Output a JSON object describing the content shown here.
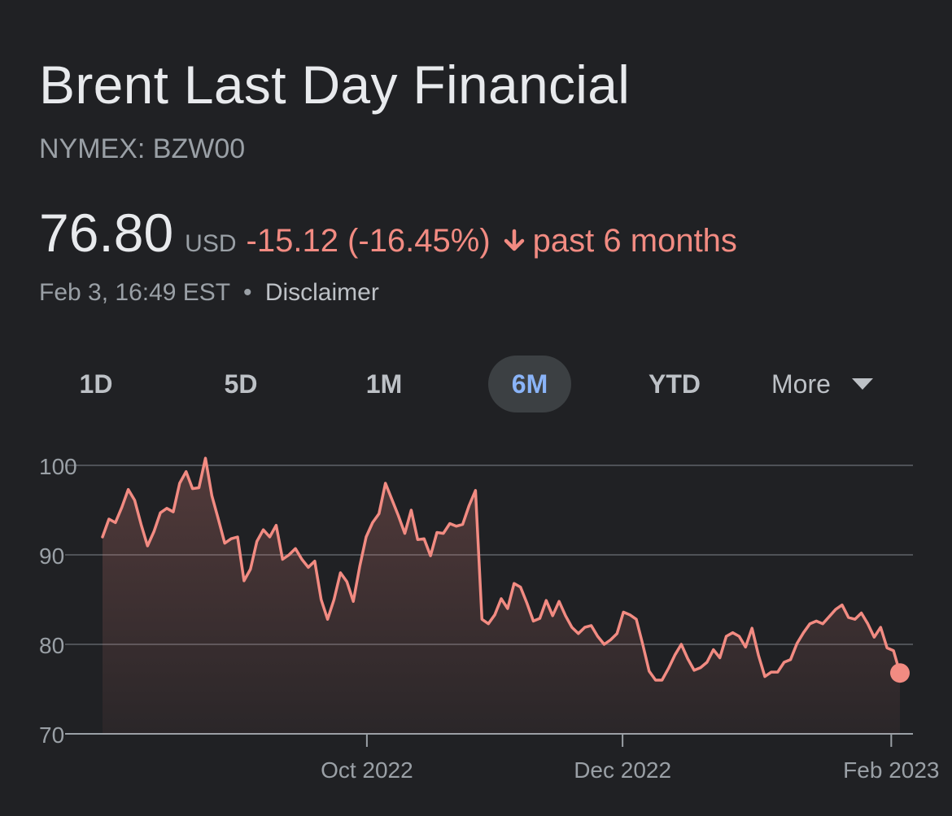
{
  "header": {
    "title": "Brent Last Day Financial",
    "ticker": "NYMEX: BZW00"
  },
  "quote": {
    "price": "76.80",
    "currency": "USD",
    "change": "-15.12 (-16.45%)",
    "direction": "down",
    "period": "past 6 months",
    "timestamp": "Feb 3, 16:49 EST",
    "separator": "•",
    "disclaimer": "Disclaimer"
  },
  "tabs": [
    {
      "label": "1D",
      "active": false
    },
    {
      "label": "5D",
      "active": false
    },
    {
      "label": "1M",
      "active": false
    },
    {
      "label": "6M",
      "active": true
    },
    {
      "label": "YTD",
      "active": false
    },
    {
      "label": "More",
      "active": false
    }
  ],
  "colors": {
    "background": "#202124",
    "line": "#f28b82",
    "negative": "#f28b82",
    "active_tab_text": "#8ab4f8",
    "gridline": "#5f6368",
    "axis_text": "#9aa0a6"
  },
  "icons": {
    "down_arrow": "arrow-down-icon",
    "more_caret": "caret-down-icon"
  },
  "chart_data": {
    "type": "area",
    "ylim": [
      70,
      100
    ],
    "yticks": [
      100,
      90,
      80,
      70
    ],
    "xlim": [
      "2022-08-03",
      "2023-02-03"
    ],
    "xticks": [
      {
        "label": "Oct 2022",
        "date": "2022-10-03"
      },
      {
        "label": "Dec 2022",
        "date": "2022-12-01"
      },
      {
        "label": "Feb 2023",
        "date": "2023-02-01"
      }
    ],
    "grid": true,
    "series": [
      {
        "values": [
          92.0,
          94.0,
          93.6,
          95.3,
          97.3,
          96.1,
          93.4,
          91.0,
          92.6,
          94.7,
          95.2,
          94.8,
          98.0,
          99.3,
          97.4,
          97.5,
          100.8,
          96.6,
          94.0,
          91.3,
          91.8,
          92.0,
          87.1,
          88.4,
          91.5,
          92.8,
          92.0,
          93.3,
          89.5,
          90.0,
          90.7,
          89.5,
          88.6,
          89.3,
          85.0,
          82.8,
          85.0,
          88.0,
          87.0,
          84.8,
          88.7,
          92.0,
          93.6,
          94.6,
          98.0,
          96.2,
          94.4,
          92.4,
          95.0,
          91.7,
          91.8,
          89.9,
          92.5,
          92.4,
          93.5,
          93.2,
          93.4,
          95.5,
          97.2,
          82.8,
          82.3,
          83.3,
          85.1,
          84.0,
          86.8,
          86.4,
          84.6,
          82.6,
          82.9,
          84.9,
          83.2,
          84.8,
          83.2,
          81.9,
          81.2,
          81.9,
          82.1,
          80.9,
          80.0,
          80.5,
          81.2,
          83.6,
          83.3,
          82.8,
          80.0,
          77.0,
          76.0,
          76.0,
          77.3,
          78.8,
          80.0,
          78.4,
          77.1,
          77.4,
          78.0,
          79.4,
          78.5,
          80.9,
          81.3,
          80.9,
          79.7,
          81.8,
          78.8,
          76.4,
          76.9,
          76.9,
          78.0,
          78.3,
          80.1,
          81.3,
          82.3,
          82.6,
          82.3,
          83.1,
          83.9,
          84.4,
          83.0,
          82.8,
          83.5,
          82.3,
          80.8,
          81.9,
          79.6,
          79.3,
          76.8
        ]
      }
    ]
  }
}
